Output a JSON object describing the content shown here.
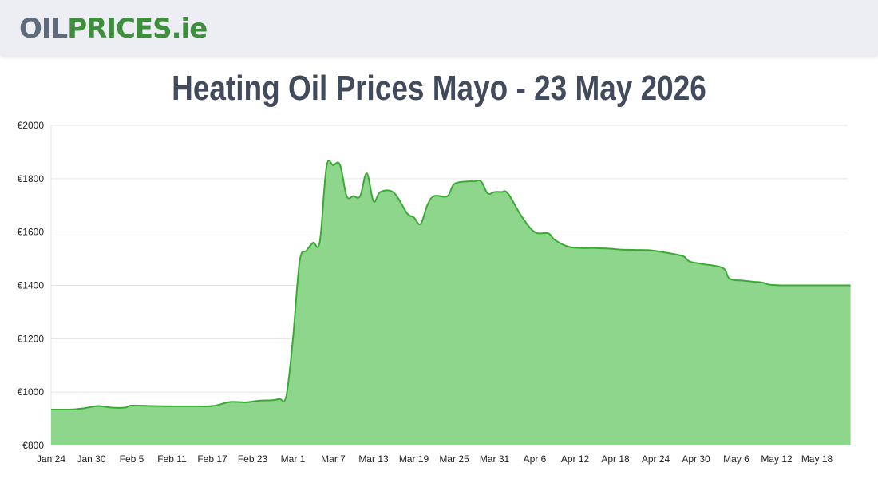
{
  "header": {
    "logo_oil": "OIL",
    "logo_prices": "PRICES",
    "logo_ie": ".ie"
  },
  "page": {
    "title": "Heating Oil Prices Mayo - 23 May 2026"
  },
  "colors": {
    "line": "#3aaa35",
    "fill": "#8fd68d",
    "grid": "#e5e5e5",
    "title": "#424b5c",
    "logo_grey": "#5f6b7b",
    "logo_green": "#3d8f3b"
  },
  "chart_data": {
    "type": "area",
    "title": "Heating Oil Prices Mayo - 23 May 2026",
    "xlabel": "",
    "ylabel": "",
    "ylim": [
      800,
      2000
    ],
    "yticks": [
      800,
      1000,
      1200,
      1400,
      1600,
      1800,
      2000
    ],
    "ytick_labels": [
      "€800",
      "€1000",
      "€1200",
      "€1400",
      "€1600",
      "€1800",
      "€2000"
    ],
    "xticks": [
      "Jan 24",
      "Jan 30",
      "Feb 5",
      "Feb 11",
      "Feb 17",
      "Feb 23",
      "Mar 1",
      "Mar 7",
      "Mar 13",
      "Mar 19",
      "Mar 25",
      "Mar 31",
      "Apr 6",
      "Apr 12",
      "Apr 18",
      "Apr 24",
      "Apr 30",
      "May 6",
      "May 12",
      "May 18"
    ],
    "grid": true,
    "legend": "none",
    "series": [
      {
        "x": [
          "2026-01-24",
          "2026-01-27",
          "2026-01-29",
          "2026-01-31",
          "2026-02-02",
          "2026-02-04",
          "2026-02-05",
          "2026-02-08",
          "2026-02-11",
          "2026-02-14",
          "2026-02-17",
          "2026-02-19",
          "2026-02-20",
          "2026-02-22",
          "2026-02-24",
          "2026-02-26",
          "2026-02-27",
          "2026-02-28",
          "2026-03-01",
          "2026-03-02",
          "2026-03-03",
          "2026-03-04",
          "2026-03-05",
          "2026-03-06",
          "2026-03-07",
          "2026-03-08",
          "2026-03-09",
          "2026-03-10",
          "2026-03-11",
          "2026-03-12",
          "2026-03-13",
          "2026-03-14",
          "2026-03-16",
          "2026-03-18",
          "2026-03-19",
          "2026-03-20",
          "2026-03-21",
          "2026-03-22",
          "2026-03-24",
          "2026-03-25",
          "2026-03-27",
          "2026-03-28",
          "2026-03-29",
          "2026-03-30",
          "2026-03-31",
          "2026-04-01",
          "2026-04-02",
          "2026-04-04",
          "2026-04-06",
          "2026-04-08",
          "2026-04-09",
          "2026-04-11",
          "2026-04-13",
          "2026-04-14",
          "2026-04-15",
          "2026-04-17",
          "2026-04-18",
          "2026-04-19",
          "2026-04-21",
          "2026-04-23",
          "2026-04-25",
          "2026-04-28",
          "2026-04-29",
          "2026-05-01",
          "2026-05-04",
          "2026-05-05",
          "2026-05-07",
          "2026-05-08",
          "2026-05-09",
          "2026-05-10",
          "2026-05-11",
          "2026-05-13",
          "2026-05-15",
          "2026-05-17",
          "2026-05-19",
          "2026-05-21",
          "2026-05-23"
        ],
        "values": [
          935,
          935,
          940,
          948,
          942,
          942,
          950,
          948,
          947,
          947,
          948,
          960,
          964,
          962,
          968,
          970,
          975,
          985,
          1200,
          1490,
          1530,
          1560,
          1565,
          1845,
          1850,
          1852,
          1735,
          1735,
          1735,
          1820,
          1715,
          1750,
          1748,
          1670,
          1655,
          1630,
          1700,
          1735,
          1735,
          1780,
          1790,
          1790,
          1790,
          1745,
          1750,
          1750,
          1745,
          1660,
          1600,
          1595,
          1570,
          1545,
          1540,
          1540,
          1540,
          1538,
          1536,
          1534,
          1533,
          1532,
          1525,
          1510,
          1490,
          1480,
          1465,
          1425,
          1418,
          1415,
          1413,
          1410,
          1402,
          1400,
          1400,
          1400,
          1400,
          1400,
          1400
        ]
      }
    ]
  }
}
